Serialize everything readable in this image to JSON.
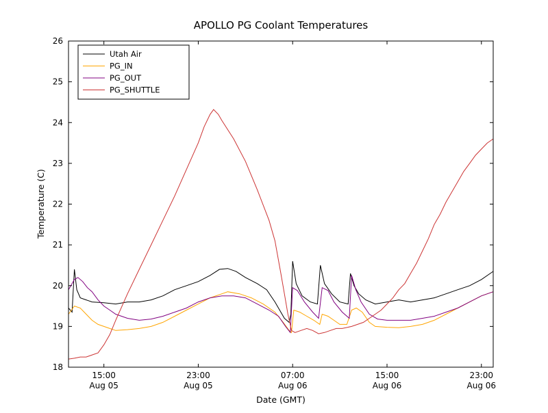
{
  "chart_data": {
    "type": "line",
    "title": "APOLLO PG Coolant Temperatures",
    "xlabel": "Date (GMT)",
    "ylabel": "Temperature (C)",
    "xlim": [
      0,
      36
    ],
    "ylim": [
      18,
      26
    ],
    "grid": false,
    "legend_position": "upper left",
    "yticks": [
      18,
      19,
      20,
      21,
      22,
      23,
      24,
      25,
      26
    ],
    "xticks": [
      {
        "h": 3,
        "time": "15:00",
        "date": "Aug 05"
      },
      {
        "h": 11,
        "time": "23:00",
        "date": "Aug 05"
      },
      {
        "h": 19,
        "time": "07:00",
        "date": "Aug 06"
      },
      {
        "h": 27,
        "time": "15:00",
        "date": "Aug 06"
      },
      {
        "h": 35,
        "time": "23:00",
        "date": "Aug 06"
      }
    ],
    "x_unit": "hours since Aug 05 12:00 GMT",
    "series": [
      {
        "name": "Utah Air",
        "color": "#000000",
        "points": [
          [
            0,
            19.45
          ],
          [
            0.3,
            19.35
          ],
          [
            0.5,
            20.4
          ],
          [
            0.7,
            19.9
          ],
          [
            1,
            19.7
          ],
          [
            1.5,
            19.65
          ],
          [
            2,
            19.6
          ],
          [
            3,
            19.58
          ],
          [
            4,
            19.55
          ],
          [
            5,
            19.6
          ],
          [
            6,
            19.6
          ],
          [
            7,
            19.65
          ],
          [
            8,
            19.75
          ],
          [
            9,
            19.9
          ],
          [
            10,
            20.0
          ],
          [
            11,
            20.1
          ],
          [
            12,
            20.25
          ],
          [
            12.8,
            20.4
          ],
          [
            13.5,
            20.42
          ],
          [
            14.2,
            20.35
          ],
          [
            15,
            20.2
          ],
          [
            16,
            20.05
          ],
          [
            16.8,
            19.9
          ],
          [
            17.5,
            19.6
          ],
          [
            18.3,
            19.2
          ],
          [
            18.7,
            19.1
          ],
          [
            18.85,
            19.3
          ],
          [
            19,
            20.6
          ],
          [
            19.3,
            20.05
          ],
          [
            19.8,
            19.75
          ],
          [
            20.5,
            19.6
          ],
          [
            21.1,
            19.55
          ],
          [
            21.35,
            20.5
          ],
          [
            21.7,
            20.05
          ],
          [
            22.3,
            19.8
          ],
          [
            23,
            19.6
          ],
          [
            23.7,
            19.55
          ],
          [
            23.9,
            20.3
          ],
          [
            24.2,
            20.0
          ],
          [
            24.6,
            19.8
          ],
          [
            25.2,
            19.65
          ],
          [
            26,
            19.55
          ],
          [
            27,
            19.6
          ],
          [
            28,
            19.65
          ],
          [
            29,
            19.6
          ],
          [
            30,
            19.65
          ],
          [
            31,
            19.7
          ],
          [
            32,
            19.8
          ],
          [
            33,
            19.9
          ],
          [
            34,
            20.0
          ],
          [
            35,
            20.15
          ],
          [
            36,
            20.35
          ]
        ]
      },
      {
        "name": "PG_IN",
        "color": "#ffa500",
        "points": [
          [
            0,
            19.3
          ],
          [
            0.5,
            19.5
          ],
          [
            1,
            19.45
          ],
          [
            1.5,
            19.3
          ],
          [
            2,
            19.15
          ],
          [
            2.5,
            19.05
          ],
          [
            3,
            19.0
          ],
          [
            3.5,
            18.95
          ],
          [
            4,
            18.9
          ],
          [
            5,
            18.92
          ],
          [
            6,
            18.95
          ],
          [
            7,
            19.0
          ],
          [
            8,
            19.1
          ],
          [
            9,
            19.25
          ],
          [
            10,
            19.4
          ],
          [
            11,
            19.55
          ],
          [
            12,
            19.7
          ],
          [
            13,
            19.8
          ],
          [
            13.5,
            19.85
          ],
          [
            14.5,
            19.8
          ],
          [
            15.5,
            19.7
          ],
          [
            16.5,
            19.55
          ],
          [
            17.5,
            19.35
          ],
          [
            18.2,
            19.1
          ],
          [
            18.7,
            18.9
          ],
          [
            18.9,
            18.85
          ],
          [
            19.1,
            19.4
          ],
          [
            19.6,
            19.35
          ],
          [
            20.2,
            19.25
          ],
          [
            20.8,
            19.15
          ],
          [
            21.3,
            19.05
          ],
          [
            21.5,
            19.3
          ],
          [
            22,
            19.25
          ],
          [
            22.5,
            19.15
          ],
          [
            23,
            19.05
          ],
          [
            23.6,
            19.05
          ],
          [
            24,
            19.4
          ],
          [
            24.4,
            19.45
          ],
          [
            24.9,
            19.35
          ],
          [
            25.5,
            19.1
          ],
          [
            26,
            19.0
          ],
          [
            27,
            18.98
          ],
          [
            28,
            18.97
          ],
          [
            29,
            19.0
          ],
          [
            30,
            19.05
          ],
          [
            31,
            19.15
          ],
          [
            32,
            19.3
          ],
          [
            33,
            19.45
          ],
          [
            34,
            19.6
          ],
          [
            35,
            19.75
          ],
          [
            36,
            19.85
          ]
        ]
      },
      {
        "name": "PG_OUT",
        "color": "#800080",
        "points": [
          [
            0,
            19.9
          ],
          [
            0.5,
            20.15
          ],
          [
            0.8,
            20.2
          ],
          [
            1.2,
            20.1
          ],
          [
            1.6,
            19.95
          ],
          [
            2,
            19.85
          ],
          [
            2.5,
            19.65
          ],
          [
            3,
            19.5
          ],
          [
            3.5,
            19.4
          ],
          [
            4,
            19.3
          ],
          [
            4.5,
            19.25
          ],
          [
            5,
            19.2
          ],
          [
            6,
            19.15
          ],
          [
            7,
            19.18
          ],
          [
            8,
            19.25
          ],
          [
            9,
            19.35
          ],
          [
            10,
            19.45
          ],
          [
            11,
            19.6
          ],
          [
            12,
            19.7
          ],
          [
            13,
            19.75
          ],
          [
            14,
            19.75
          ],
          [
            15,
            19.7
          ],
          [
            16,
            19.55
          ],
          [
            17,
            19.4
          ],
          [
            17.8,
            19.25
          ],
          [
            18.4,
            19.0
          ],
          [
            18.8,
            18.85
          ],
          [
            19,
            19.95
          ],
          [
            19.4,
            19.88
          ],
          [
            20,
            19.6
          ],
          [
            20.7,
            19.35
          ],
          [
            21.2,
            19.2
          ],
          [
            21.5,
            19.95
          ],
          [
            22,
            19.88
          ],
          [
            22.5,
            19.6
          ],
          [
            23.2,
            19.35
          ],
          [
            23.8,
            19.2
          ],
          [
            24,
            20.25
          ],
          [
            24.35,
            19.9
          ],
          [
            24.8,
            19.6
          ],
          [
            25.5,
            19.3
          ],
          [
            26.2,
            19.18
          ],
          [
            27,
            19.15
          ],
          [
            28,
            19.15
          ],
          [
            29,
            19.15
          ],
          [
            30,
            19.2
          ],
          [
            31,
            19.25
          ],
          [
            32,
            19.35
          ],
          [
            33,
            19.45
          ],
          [
            34,
            19.6
          ],
          [
            35,
            19.75
          ],
          [
            36,
            19.85
          ]
        ]
      },
      {
        "name": "PG_SHUTTLE",
        "color": "#cc3333",
        "points": [
          [
            0,
            18.2
          ],
          [
            0.5,
            18.22
          ],
          [
            1,
            18.25
          ],
          [
            1.5,
            18.25
          ],
          [
            2,
            18.3
          ],
          [
            2.5,
            18.35
          ],
          [
            3,
            18.55
          ],
          [
            3.5,
            18.8
          ],
          [
            4,
            19.15
          ],
          [
            5,
            19.8
          ],
          [
            6,
            20.4
          ],
          [
            7,
            21.0
          ],
          [
            8,
            21.6
          ],
          [
            9,
            22.2
          ],
          [
            10,
            22.85
          ],
          [
            11,
            23.5
          ],
          [
            11.5,
            23.9
          ],
          [
            12,
            24.2
          ],
          [
            12.3,
            24.32
          ],
          [
            12.7,
            24.2
          ],
          [
            13,
            24.05
          ],
          [
            14,
            23.6
          ],
          [
            15,
            23.05
          ],
          [
            16,
            22.35
          ],
          [
            17,
            21.6
          ],
          [
            17.5,
            21.1
          ],
          [
            18,
            20.3
          ],
          [
            18.3,
            19.8
          ],
          [
            18.6,
            19.3
          ],
          [
            18.9,
            18.9
          ],
          [
            19.2,
            18.85
          ],
          [
            19.7,
            18.9
          ],
          [
            20.2,
            18.95
          ],
          [
            20.7,
            18.9
          ],
          [
            21.2,
            18.82
          ],
          [
            21.7,
            18.85
          ],
          [
            22.2,
            18.9
          ],
          [
            22.7,
            18.95
          ],
          [
            23.2,
            18.95
          ],
          [
            24,
            19.0
          ],
          [
            25,
            19.1
          ],
          [
            25.5,
            19.2
          ],
          [
            26,
            19.3
          ],
          [
            26.5,
            19.4
          ],
          [
            27,
            19.55
          ],
          [
            27.5,
            19.7
          ],
          [
            28,
            19.9
          ],
          [
            28.5,
            20.05
          ],
          [
            29,
            20.3
          ],
          [
            29.5,
            20.55
          ],
          [
            30,
            20.85
          ],
          [
            30.5,
            21.15
          ],
          [
            31,
            21.5
          ],
          [
            31.5,
            21.75
          ],
          [
            32,
            22.05
          ],
          [
            32.5,
            22.3
          ],
          [
            33,
            22.55
          ],
          [
            33.5,
            22.8
          ],
          [
            34,
            23.0
          ],
          [
            34.5,
            23.2
          ],
          [
            35,
            23.35
          ],
          [
            35.5,
            23.5
          ],
          [
            36,
            23.6
          ]
        ]
      }
    ]
  }
}
